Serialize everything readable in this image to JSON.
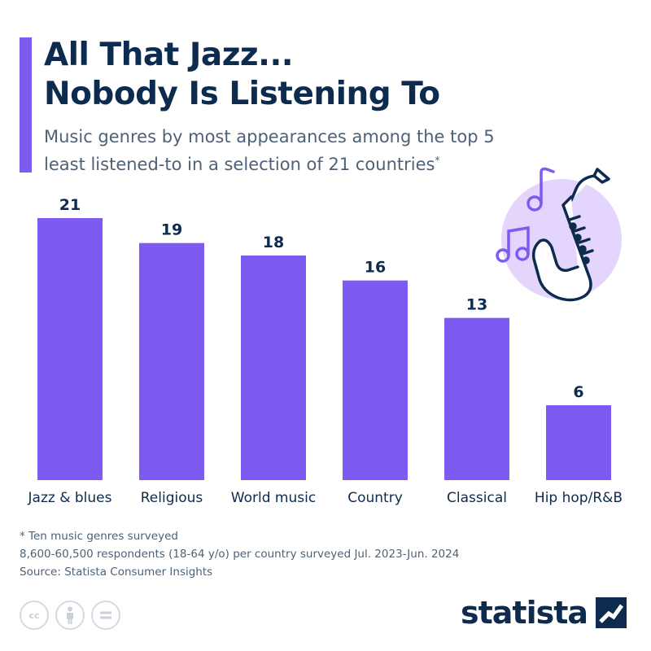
{
  "header": {
    "title_line1": "All That Jazz...",
    "title_line2": "Nobody Is Listening To",
    "subtitle_line1": "Music genres by most appearances among the top 5",
    "subtitle_line2": "least listened-to in a selection of 21 countries",
    "subtitle_mark": "*"
  },
  "colors": {
    "bar": "#7e5bf0",
    "title": "#0d2b4f",
    "text": "#4e6175",
    "illustration_bg": "#e3d5fb"
  },
  "chart_data": {
    "type": "bar",
    "categories": [
      "Jazz & blues",
      "Religious",
      "World music",
      "Country",
      "Classical",
      "Hip hop/R&B"
    ],
    "values": [
      21,
      19,
      18,
      16,
      13,
      6
    ],
    "data_labels": [
      "21",
      "19",
      "18",
      "16",
      "13",
      "6"
    ],
    "ylim": [
      0,
      21
    ],
    "grid": false,
    "legend": "none"
  },
  "footer": {
    "note1": "* Ten music genres surveyed",
    "note2": "8,600-60,500 respondents (18-64 y/o) per country surveyed Jul. 2023-Jun. 2024",
    "source": "Source: Statista Consumer Insights",
    "license_icons": [
      "cc-icon",
      "by-icon",
      "nd-icon"
    ],
    "brand": "statista"
  }
}
